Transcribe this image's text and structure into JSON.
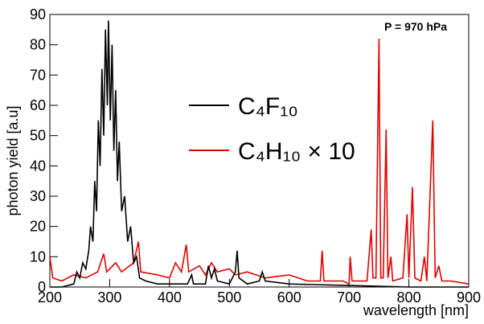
{
  "chart_data": {
    "type": "line",
    "annotation": "P = 970 hPa",
    "x_label": "wavelength [nm]",
    "y_label": "photon yield [a.u]",
    "xlim": [
      200,
      900
    ],
    "xticks": [
      200,
      300,
      400,
      500,
      600,
      700,
      800,
      900
    ],
    "ylim": [
      0,
      90
    ],
    "yticks": [
      0,
      10,
      20,
      30,
      40,
      50,
      60,
      70,
      80,
      90
    ],
    "series": [
      {
        "name": "C₄F₁₀",
        "color": "#000000",
        "x": [
          200,
          220,
          240,
          245,
          250,
          255,
          260,
          265,
          268,
          272,
          275,
          278,
          281,
          284,
          287,
          290,
          293,
          296,
          298,
          301,
          304,
          307,
          310,
          313,
          316,
          320,
          325,
          330,
          335,
          340,
          345,
          350,
          360,
          380,
          400,
          430,
          437,
          440,
          460,
          465,
          470,
          475,
          480,
          500,
          510,
          513,
          516,
          530,
          550,
          555,
          560,
          600,
          700,
          800,
          900
        ],
        "values": [
          0,
          0,
          1,
          5,
          3,
          8,
          6,
          12,
          20,
          15,
          35,
          25,
          55,
          40,
          72,
          50,
          85,
          60,
          88,
          55,
          80,
          45,
          65,
          35,
          48,
          25,
          30,
          15,
          20,
          8,
          10,
          3,
          2,
          1,
          1,
          1,
          4,
          1,
          1,
          7,
          3,
          6,
          2,
          1,
          5,
          12,
          3,
          1,
          2,
          5,
          2,
          1,
          0.5,
          0,
          0
        ]
      },
      {
        "name": "C₄H₁₀ × 10",
        "color": "#e00000",
        "x": [
          200,
          205,
          220,
          240,
          260,
          280,
          290,
          295,
          310,
          320,
          340,
          348,
          352,
          380,
          400,
          410,
          420,
          428,
          432,
          450,
          460,
          470,
          480,
          500,
          510,
          530,
          560,
          600,
          630,
          652,
          655,
          658,
          690,
          700,
          702,
          705,
          730,
          737,
          740,
          745,
          750,
          753,
          757,
          762,
          765,
          770,
          773,
          790,
          797,
          800,
          806,
          810,
          820,
          826,
          830,
          840,
          844,
          850,
          855,
          870,
          900
        ],
        "values": [
          10,
          3,
          2,
          4,
          3,
          5,
          11,
          5,
          8,
          5,
          8,
          15,
          5,
          4,
          3,
          8,
          5,
          14,
          5,
          7,
          4,
          8,
          5,
          6,
          4,
          5,
          3,
          4,
          2,
          2,
          12,
          2,
          2,
          1,
          10,
          2,
          2,
          19,
          3,
          3,
          82,
          3,
          3,
          52,
          3,
          10,
          2,
          3,
          24,
          3,
          33,
          3,
          2,
          10,
          2,
          55,
          3,
          7,
          2,
          2,
          1
        ]
      }
    ]
  }
}
